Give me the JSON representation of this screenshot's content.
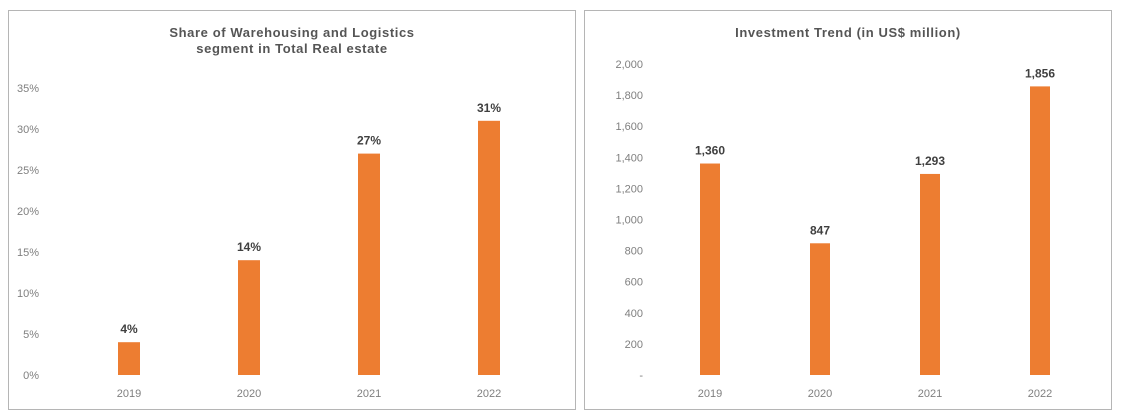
{
  "chart_data": [
    {
      "type": "bar",
      "title_lines": [
        "Share of Warehousing and Logistics",
        "segment in Total Real estate"
      ],
      "categories": [
        "2019",
        "2020",
        "2021",
        "2022"
      ],
      "values": [
        4,
        14,
        27,
        31
      ],
      "data_labels": [
        "4%",
        "14%",
        "27%",
        "31%"
      ],
      "ylim": [
        0,
        35
      ],
      "yticks": [
        0,
        5,
        10,
        15,
        20,
        25,
        30,
        35
      ],
      "ytick_labels": [
        "0%",
        "5%",
        "10%",
        "15%",
        "20%",
        "25%",
        "30%",
        "35%"
      ],
      "xlabel": "",
      "ylabel": "",
      "grid": false,
      "bar_color": "#ED7D31"
    },
    {
      "type": "bar",
      "title_lines": [
        "Investment Trend (in US$ million)"
      ],
      "categories": [
        "2019",
        "2020",
        "2021",
        "2022"
      ],
      "values": [
        1360,
        847,
        1293,
        1856
      ],
      "data_labels": [
        "1,360",
        "847",
        "1,293",
        "1,856"
      ],
      "ylim": [
        0,
        2000
      ],
      "yticks": [
        0,
        200,
        400,
        600,
        800,
        1000,
        1200,
        1400,
        1600,
        1800,
        2000
      ],
      "ytick_labels": [
        "-",
        "200",
        "400",
        "600",
        "800",
        "1,000",
        "1,200",
        "1,400",
        "1,600",
        "1,800",
        "2,000"
      ],
      "xlabel": "",
      "ylabel": "",
      "grid": false,
      "bar_color": "#ED7D31"
    }
  ]
}
